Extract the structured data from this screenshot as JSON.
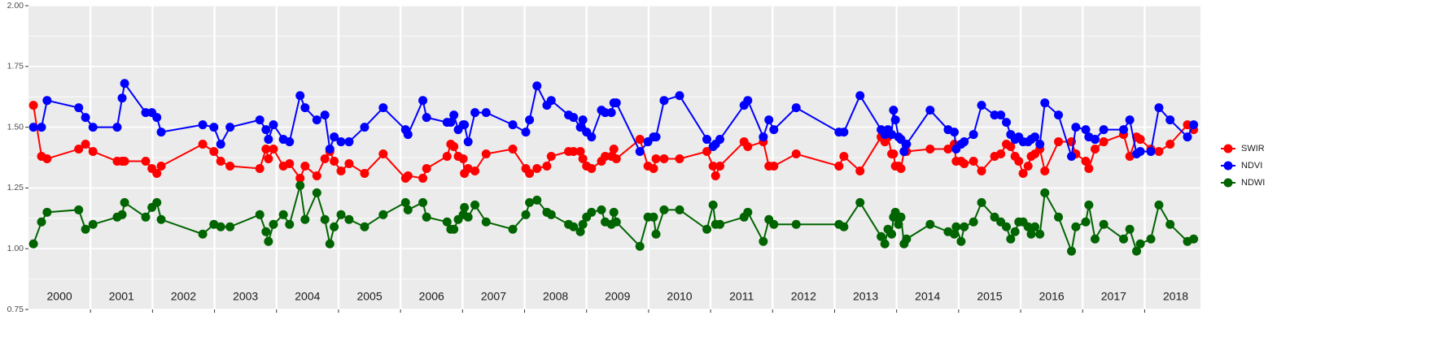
{
  "chart_data": {
    "type": "line",
    "x": [
      2000.08,
      2000.21,
      2000.3,
      2000.81,
      2000.92,
      2001.04,
      2001.43,
      2001.51,
      2001.55,
      2001.89,
      2001.99,
      2002.07,
      2002.14,
      2002.81,
      2002.99,
      2003.1,
      2003.25,
      2003.73,
      2003.83,
      2003.87,
      2003.95,
      2004.11,
      2004.21,
      2004.38,
      2004.46,
      2004.65,
      2004.78,
      2004.86,
      2004.93,
      2005.04,
      2005.17,
      2005.42,
      2005.72,
      2006.08,
      2006.12,
      2006.36,
      2006.42,
      2006.75,
      2006.81,
      2006.86,
      2006.93,
      2007.01,
      2007.03,
      2007.09,
      2007.2,
      2007.38,
      2007.81,
      2008.02,
      2008.08,
      2008.2,
      2008.36,
      2008.43,
      2008.71,
      2008.79,
      2008.9,
      2008.94,
      2009.0,
      2009.08,
      2009.24,
      2009.3,
      2009.4,
      2009.44,
      2009.48,
      2009.86,
      2009.99,
      2010.08,
      2010.12,
      2010.25,
      2010.5,
      2010.94,
      2011.04,
      2011.08,
      2011.15,
      2011.54,
      2011.6,
      2011.85,
      2011.94,
      2012.02,
      2012.38,
      2013.07,
      2013.15,
      2013.41,
      2013.75,
      2013.81,
      2013.86,
      2013.92,
      2013.95,
      2013.98,
      2014.03,
      2014.07,
      2014.12,
      2014.16,
      2014.54,
      2014.83,
      2014.93,
      2014.96,
      2015.04,
      2015.09,
      2015.24,
      2015.37,
      2015.58,
      2015.68,
      2015.77,
      2015.84,
      2015.91,
      2015.97,
      2016.04,
      2016.12,
      2016.17,
      2016.23,
      2016.31,
      2016.39,
      2016.61,
      2016.82,
      2016.89,
      2017.05,
      2017.1,
      2017.2,
      2017.34,
      2017.66,
      2017.76,
      2017.87,
      2017.93,
      2018.1,
      2018.23,
      2018.41,
      2018.69,
      2018.79
    ],
    "series": [
      {
        "name": "SWIR",
        "color": "#ff0000",
        "values": [
          1.59,
          1.38,
          1.37,
          1.41,
          1.43,
          1.4,
          1.36,
          1.36,
          1.36,
          1.36,
          1.33,
          1.31,
          1.34,
          1.43,
          1.4,
          1.36,
          1.34,
          1.33,
          1.41,
          1.37,
          1.41,
          1.34,
          1.35,
          1.29,
          1.34,
          1.3,
          1.37,
          1.4,
          1.36,
          1.32,
          1.35,
          1.31,
          1.39,
          1.29,
          1.3,
          1.29,
          1.33,
          1.38,
          1.43,
          1.42,
          1.38,
          1.37,
          1.31,
          1.33,
          1.32,
          1.39,
          1.41,
          1.33,
          1.31,
          1.33,
          1.34,
          1.38,
          1.4,
          1.4,
          1.4,
          1.37,
          1.34,
          1.33,
          1.36,
          1.38,
          1.38,
          1.41,
          1.37,
          1.45,
          1.34,
          1.33,
          1.37,
          1.37,
          1.37,
          1.4,
          1.34,
          1.3,
          1.34,
          1.44,
          1.42,
          1.44,
          1.34,
          1.34,
          1.39,
          1.34,
          1.38,
          1.32,
          1.46,
          1.44,
          1.46,
          1.39,
          1.39,
          1.34,
          1.34,
          1.33,
          1.4,
          1.4,
          1.41,
          1.41,
          1.43,
          1.36,
          1.36,
          1.35,
          1.36,
          1.32,
          1.38,
          1.39,
          1.43,
          1.42,
          1.38,
          1.36,
          1.31,
          1.34,
          1.38,
          1.39,
          1.41,
          1.32,
          1.44,
          1.44,
          1.39,
          1.36,
          1.33,
          1.41,
          1.44,
          1.47,
          1.38,
          1.46,
          1.45,
          1.41,
          1.4,
          1.43,
          1.51,
          1.49
        ]
      },
      {
        "name": "NDVI",
        "color": "#0000ff",
        "values": [
          1.5,
          1.5,
          1.61,
          1.58,
          1.54,
          1.5,
          1.5,
          1.62,
          1.68,
          1.56,
          1.56,
          1.54,
          1.48,
          1.51,
          1.5,
          1.43,
          1.5,
          1.53,
          1.49,
          1.45,
          1.51,
          1.45,
          1.44,
          1.63,
          1.58,
          1.53,
          1.55,
          1.41,
          1.46,
          1.44,
          1.44,
          1.5,
          1.58,
          1.49,
          1.47,
          1.61,
          1.54,
          1.52,
          1.52,
          1.55,
          1.49,
          1.51,
          1.51,
          1.44,
          1.56,
          1.56,
          1.51,
          1.48,
          1.53,
          1.67,
          1.59,
          1.61,
          1.55,
          1.54,
          1.5,
          1.53,
          1.48,
          1.46,
          1.57,
          1.56,
          1.56,
          1.6,
          1.6,
          1.4,
          1.44,
          1.46,
          1.46,
          1.61,
          1.63,
          1.45,
          1.42,
          1.43,
          1.45,
          1.59,
          1.61,
          1.46,
          1.53,
          1.49,
          1.58,
          1.48,
          1.48,
          1.63,
          1.49,
          1.47,
          1.49,
          1.47,
          1.57,
          1.53,
          1.46,
          1.45,
          1.4,
          1.43,
          1.57,
          1.49,
          1.48,
          1.41,
          1.43,
          1.44,
          1.47,
          1.59,
          1.55,
          1.55,
          1.52,
          1.47,
          1.45,
          1.46,
          1.44,
          1.44,
          1.45,
          1.46,
          1.43,
          1.6,
          1.55,
          1.38,
          1.5,
          1.49,
          1.46,
          1.45,
          1.49,
          1.49,
          1.53,
          1.39,
          1.4,
          1.4,
          1.58,
          1.53,
          1.46,
          1.51
        ]
      },
      {
        "name": "NDWI",
        "color": "#006400",
        "values": [
          1.02,
          1.11,
          1.15,
          1.16,
          1.08,
          1.1,
          1.13,
          1.14,
          1.19,
          1.13,
          1.17,
          1.19,
          1.12,
          1.06,
          1.1,
          1.09,
          1.09,
          1.14,
          1.07,
          1.03,
          1.1,
          1.14,
          1.1,
          1.26,
          1.12,
          1.23,
          1.12,
          1.02,
          1.09,
          1.14,
          1.12,
          1.09,
          1.14,
          1.19,
          1.16,
          1.19,
          1.13,
          1.11,
          1.08,
          1.08,
          1.12,
          1.14,
          1.17,
          1.13,
          1.18,
          1.11,
          1.08,
          1.14,
          1.19,
          1.2,
          1.15,
          1.14,
          1.1,
          1.09,
          1.07,
          1.1,
          1.13,
          1.15,
          1.16,
          1.11,
          1.1,
          1.15,
          1.11,
          1.01,
          1.13,
          1.13,
          1.06,
          1.16,
          1.16,
          1.08,
          1.18,
          1.1,
          1.1,
          1.13,
          1.15,
          1.03,
          1.12,
          1.1,
          1.1,
          1.1,
          1.09,
          1.19,
          1.05,
          1.02,
          1.08,
          1.06,
          1.13,
          1.15,
          1.1,
          1.13,
          1.02,
          1.04,
          1.1,
          1.07,
          1.06,
          1.09,
          1.03,
          1.09,
          1.11,
          1.19,
          1.13,
          1.11,
          1.09,
          1.04,
          1.07,
          1.11,
          1.11,
          1.09,
          1.06,
          1.09,
          1.06,
          1.23,
          1.13,
          0.99,
          1.09,
          1.11,
          1.18,
          1.04,
          1.1,
          1.04,
          1.08,
          0.99,
          1.02,
          1.04,
          1.18,
          1.1,
          1.03,
          1.04
        ]
      }
    ],
    "year_labels": [
      "2000",
      "2001",
      "2002",
      "2003",
      "2004",
      "2005",
      "2006",
      "2007",
      "2008",
      "2009",
      "2010",
      "2011",
      "2012",
      "2013",
      "2014",
      "2015",
      "2016",
      "2017",
      "2018"
    ],
    "xlim": [
      2000,
      2018.9
    ],
    "xticks": [
      2001,
      2002,
      2003,
      2004,
      2005,
      2006,
      2007,
      2008,
      2009,
      2010,
      2011,
      2012,
      2013,
      2014,
      2015,
      2016,
      2017,
      2018
    ],
    "ylim": [
      0.75,
      2.0
    ],
    "yticks": [
      0.75,
      {
        "value": 1.0,
        "label": "1.00"
      },
      1.25,
      {
        "value": 1.5,
        "label": "1.50"
      },
      1.75,
      {
        "value": 2.0,
        "label": "2.00"
      }
    ],
    "grid": true
  }
}
